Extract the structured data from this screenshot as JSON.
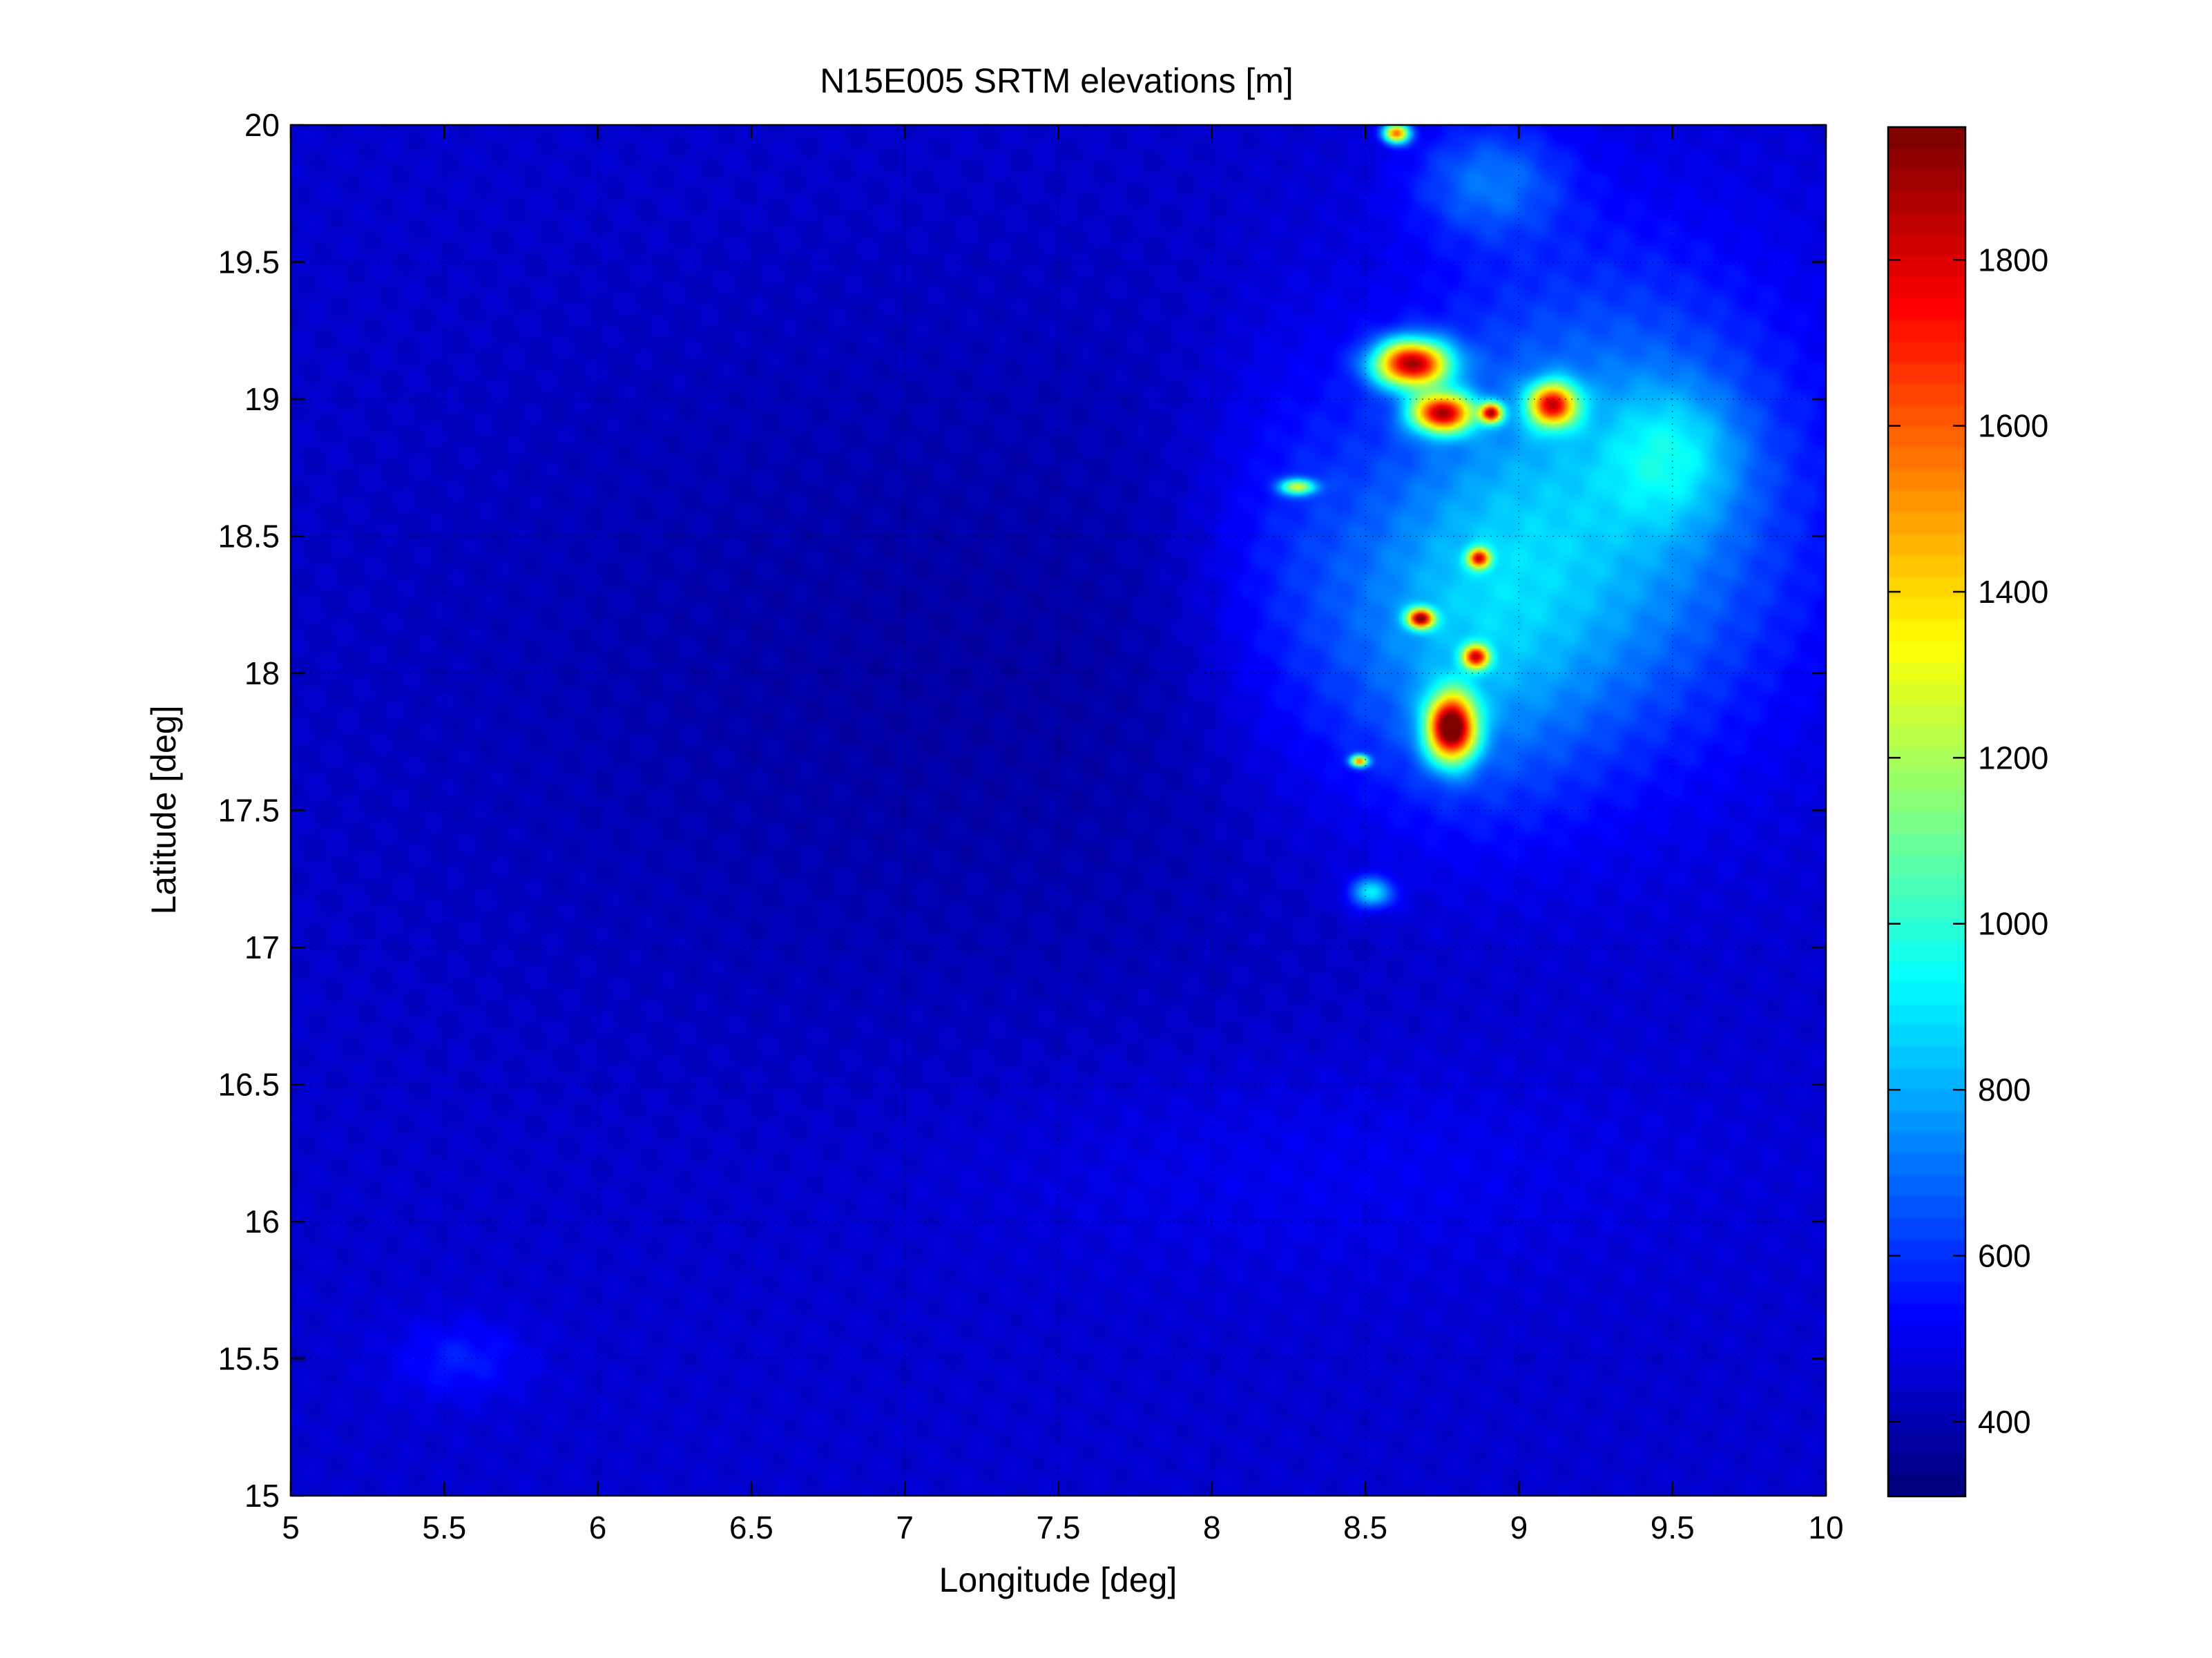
{
  "chart_data": {
    "type": "heatmap",
    "title": "N15E005 SRTM elevations [m]",
    "xlabel": "Longitude [deg]",
    "ylabel": "Latitude [deg]",
    "xlim": [
      5,
      10
    ],
    "ylim": [
      15,
      20
    ],
    "x_ticks": [
      5,
      5.5,
      6,
      6.5,
      7,
      7.5,
      8,
      8.5,
      9,
      9.5,
      10
    ],
    "x_tick_labels": [
      "5",
      "5.5",
      "6",
      "6.5",
      "7",
      "7.5",
      "8",
      "8.5",
      "9",
      "9.5",
      "10"
    ],
    "y_ticks": [
      15,
      15.5,
      16,
      16.5,
      17,
      17.5,
      18,
      18.5,
      19,
      19.5,
      20
    ],
    "y_tick_labels": [
      "15",
      "15.5",
      "16",
      "16.5",
      "17",
      "17.5",
      "18",
      "18.5",
      "19",
      "19.5",
      "20"
    ],
    "grid": true,
    "colormap": "jet",
    "colorbar": {
      "range": [
        310,
        1960
      ],
      "ticks": [
        400,
        600,
        800,
        1000,
        1200,
        1400,
        1600,
        1800
      ],
      "tick_labels": [
        "400",
        "600",
        "800",
        "1000",
        "1200",
        "1400",
        "1600",
        "1800"
      ],
      "placement": "right"
    },
    "base_elevation": 440,
    "elevation_features": [
      {
        "lon": 9.25,
        "lat": 18.6,
        "rx": 0.95,
        "ry": 1.25,
        "value": 370
      },
      {
        "lon": 8.8,
        "lat": 18.1,
        "rx": 0.6,
        "ry": 0.9,
        "value": 250
      },
      {
        "lon": 9.5,
        "lat": 18.8,
        "rx": 0.3,
        "ry": 0.35,
        "value": 220
      },
      {
        "lon": 8.9,
        "lat": 19.8,
        "rx": 0.35,
        "ry": 0.3,
        "value": 230
      },
      {
        "lon": 8.25,
        "lat": 18.4,
        "rx": 0.45,
        "ry": 1.1,
        "value": 120
      },
      {
        "lon": 7.2,
        "lat": 18.0,
        "rx": 2.6,
        "ry": 2.0,
        "value": -70
      },
      {
        "lon": 8.4,
        "lat": 16.2,
        "rx": 1.6,
        "ry": 0.55,
        "value": 60
      },
      {
        "lon": 5.55,
        "lat": 15.5,
        "rx": 0.3,
        "ry": 0.2,
        "value": 120
      },
      {
        "lon": 8.65,
        "lat": 19.13,
        "rx": 0.17,
        "ry": 0.12,
        "value": 1350
      },
      {
        "lon": 8.75,
        "lat": 18.95,
        "rx": 0.14,
        "ry": 0.1,
        "value": 1250
      },
      {
        "lon": 9.11,
        "lat": 18.98,
        "rx": 0.11,
        "ry": 0.11,
        "value": 1100
      },
      {
        "lon": 8.78,
        "lat": 17.8,
        "rx": 0.11,
        "ry": 0.17,
        "value": 1450
      },
      {
        "lon": 8.68,
        "lat": 18.2,
        "rx": 0.06,
        "ry": 0.05,
        "value": 1200
      },
      {
        "lon": 8.86,
        "lat": 18.06,
        "rx": 0.06,
        "ry": 0.06,
        "value": 1000
      },
      {
        "lon": 8.87,
        "lat": 18.42,
        "rx": 0.05,
        "ry": 0.05,
        "value": 1000
      },
      {
        "lon": 8.28,
        "lat": 18.68,
        "rx": 0.08,
        "ry": 0.04,
        "value": 700
      },
      {
        "lon": 8.52,
        "lat": 17.2,
        "rx": 0.1,
        "ry": 0.08,
        "value": 450
      },
      {
        "lon": 8.6,
        "lat": 19.97,
        "rx": 0.06,
        "ry": 0.05,
        "value": 1100
      },
      {
        "lon": 8.48,
        "lat": 17.68,
        "rx": 0.04,
        "ry": 0.03,
        "value": 1000
      },
      {
        "lon": 8.91,
        "lat": 18.95,
        "rx": 0.05,
        "ry": 0.05,
        "value": 1100
      }
    ]
  }
}
